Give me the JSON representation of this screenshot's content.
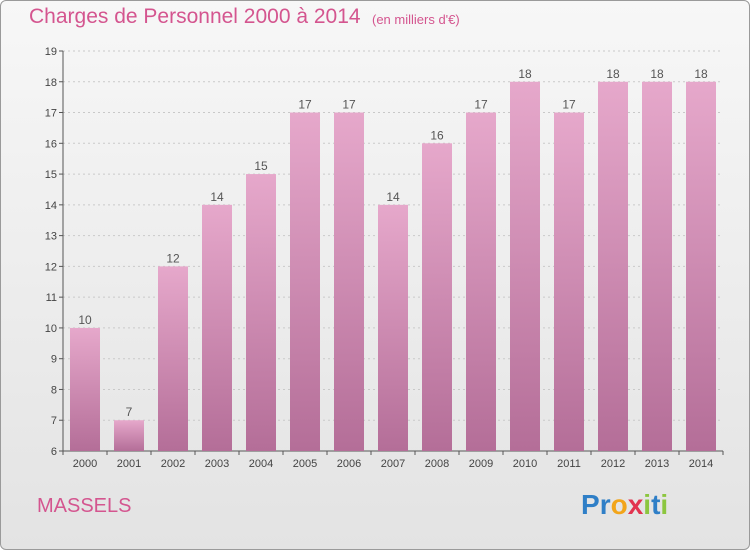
{
  "header": {
    "title": "Charges de Personnel 2000 à 2014",
    "subtitle": "(en milliers d'€)"
  },
  "footer": {
    "place": "MASSELS",
    "logo_letters": [
      {
        "char": "P",
        "color": "#2f7fc7"
      },
      {
        "char": "r",
        "color": "#2f7fc7"
      },
      {
        "char": "o",
        "color": "#f2a51a"
      },
      {
        "char": "x",
        "color": "#e2334f"
      },
      {
        "char": "i",
        "color": "#8cc63f"
      },
      {
        "char": "t",
        "color": "#2f7fc7"
      },
      {
        "char": "i",
        "color": "#8cc63f"
      }
    ]
  },
  "chart_data": {
    "type": "bar",
    "categories": [
      "2000",
      "2001",
      "2002",
      "2003",
      "2004",
      "2005",
      "2006",
      "2007",
      "2008",
      "2009",
      "2010",
      "2011",
      "2012",
      "2013",
      "2014"
    ],
    "values": [
      10,
      7,
      12,
      14,
      15,
      17,
      17,
      14,
      16,
      17,
      18,
      17,
      18,
      18,
      18
    ],
    "data_labels": [
      "10",
      "7",
      "12",
      "14",
      "15",
      "17",
      "17",
      "14",
      "16",
      "17",
      "18",
      "17",
      "18",
      "18",
      "18"
    ],
    "ylim": [
      6,
      19
    ],
    "yticks": [
      6,
      7,
      8,
      9,
      10,
      11,
      12,
      13,
      14,
      15,
      16,
      17,
      18,
      19
    ],
    "grid": true,
    "bar_color_top": "#e6a8cb",
    "bar_color_bottom": "#b46e98",
    "label_color": "#555555"
  }
}
